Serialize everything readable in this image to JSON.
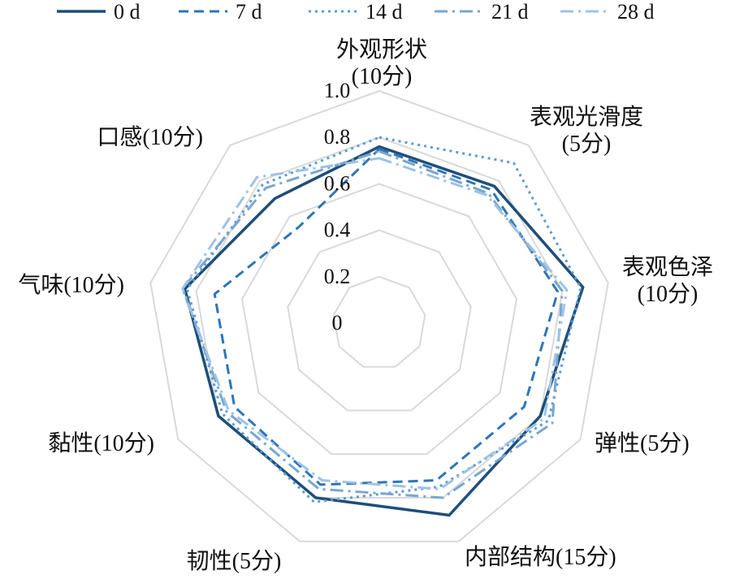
{
  "chart_data": {
    "type": "radar",
    "axes": [
      {
        "name": "外观形状",
        "unit": "(10分)"
      },
      {
        "name": "表观光滑度",
        "unit": "(5分)"
      },
      {
        "name": "表观色泽",
        "unit": "(10分)"
      },
      {
        "name": "弹性(5分)",
        "unit": ""
      },
      {
        "name": "内部结构(15分)",
        "unit": ""
      },
      {
        "name": "韧性(5分)",
        "unit": ""
      },
      {
        "name": "黏性(10分)",
        "unit": ""
      },
      {
        "name": "气味(10分)",
        "unit": ""
      },
      {
        "name": "口感(10分)",
        "unit": ""
      }
    ],
    "ticks": [
      "0",
      "0.2",
      "0.4",
      "0.6",
      "0.8",
      "1.0"
    ],
    "rlim": [
      0,
      1.0
    ],
    "grid": true,
    "legend_position": "top",
    "series": [
      {
        "name": "0 d",
        "style": "solid",
        "color": "#1F4E79",
        "values": [
          0.76,
          0.77,
          0.89,
          0.8,
          0.88,
          0.8,
          0.8,
          0.85,
          0.7
        ]
      },
      {
        "name": "7 d",
        "style": "dashed",
        "color": "#2E75B6",
        "values": [
          0.75,
          0.75,
          0.78,
          0.72,
          0.72,
          0.74,
          0.72,
          0.72,
          0.54
        ]
      },
      {
        "name": "14 d",
        "style": "dotted",
        "color": "#5B9BD5",
        "values": [
          0.8,
          0.9,
          0.88,
          0.84,
          0.75,
          0.82,
          0.78,
          0.84,
          0.78
        ]
      },
      {
        "name": "21 d",
        "style": "dashdot",
        "color": "#7AA6CE",
        "values": [
          0.74,
          0.73,
          0.8,
          0.86,
          0.8,
          0.76,
          0.76,
          0.86,
          0.76
        ]
      },
      {
        "name": "28 d",
        "style": "dashdot",
        "color": "#9DC3E6",
        "values": [
          0.71,
          0.72,
          0.82,
          0.82,
          0.76,
          0.72,
          0.75,
          0.86,
          0.82
        ]
      }
    ]
  }
}
